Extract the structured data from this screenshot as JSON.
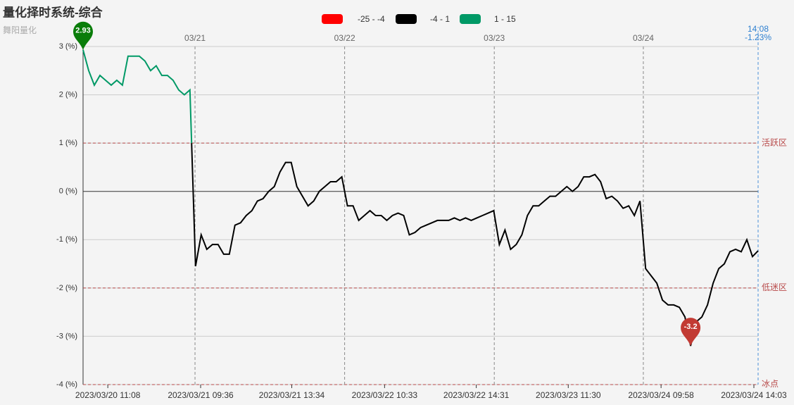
{
  "chart_data": {
    "type": "line",
    "title": "量化择时系统-综合",
    "subtitle": "舞阳量化",
    "pieces": [
      {
        "min": -25,
        "max": -4,
        "label": "-25 - -4",
        "color": "#ff0000"
      },
      {
        "min": -4,
        "max": 1,
        "label": "-4 - 1",
        "color": "#000000"
      },
      {
        "min": 1,
        "max": 15,
        "label": "1 - 15",
        "color": "#009966"
      }
    ],
    "series": [
      {
        "values": [
          2.93,
          2.5,
          2.2,
          2.4,
          2.3,
          2.2,
          2.3,
          2.2,
          2.8,
          2.8,
          2.8,
          2.7,
          2.5,
          2.6,
          2.4,
          2.4,
          2.3,
          2.1,
          2.0,
          2.1,
          -1.55,
          -0.9,
          -1.2,
          -1.1,
          -1.1,
          -1.3,
          -1.3,
          -0.7,
          -0.65,
          -0.5,
          -0.4,
          -0.2,
          -0.15,
          0.0,
          0.1,
          0.4,
          0.6,
          0.6,
          0.1,
          -0.1,
          -0.3,
          -0.2,
          0.0,
          0.1,
          0.2,
          0.2,
          0.3,
          -0.3,
          -0.3,
          -0.6,
          -0.5,
          -0.4,
          -0.5,
          -0.5,
          -0.6,
          -0.5,
          -0.45,
          -0.5,
          -0.9,
          -0.85,
          -0.75,
          -0.7,
          -0.65,
          -0.6,
          -0.6,
          -0.6,
          -0.55,
          -0.6,
          -0.55,
          -0.6,
          -0.55,
          -0.5,
          -0.45,
          -0.4,
          -1.1,
          -0.8,
          -1.2,
          -1.1,
          -0.9,
          -0.5,
          -0.3,
          -0.3,
          -0.2,
          -0.1,
          -0.1,
          0.0,
          0.1,
          0.0,
          0.1,
          0.3,
          0.3,
          0.35,
          0.2,
          -0.15,
          -0.1,
          -0.2,
          -0.35,
          -0.3,
          -0.5,
          -0.2,
          -1.6,
          -1.75,
          -1.9,
          -2.25,
          -2.35,
          -2.35,
          -2.4,
          -2.6,
          -3.2,
          -2.7,
          -2.6,
          -2.35,
          -1.9,
          -1.6,
          -1.5,
          -1.25,
          -1.2,
          -1.25,
          -1.0,
          -1.35,
          -1.23
        ]
      }
    ],
    "max_value": 2.93,
    "min_value": -3.2,
    "xlim": [
      0,
      120
    ],
    "xticks": [
      {
        "value": 4.4,
        "label": "2023/03/20 11:08"
      },
      {
        "value": 20.9,
        "label": "2023/03/21 09:36"
      },
      {
        "value": 37.1,
        "label": "2023/03/21 13:34"
      },
      {
        "value": 53.6,
        "label": "2023/03/22 10:33"
      },
      {
        "value": 69.9,
        "label": "2023/03/22 14:31"
      },
      {
        "value": 86.25,
        "label": "2023/03/23 11:30"
      },
      {
        "value": 102.75,
        "label": "2023/03/24 09:58"
      },
      {
        "value": 119.25,
        "label": "2023/03/24 14:03"
      }
    ],
    "top_xticks": [
      {
        "value": 19.9,
        "label": "03/21"
      },
      {
        "value": 46.5,
        "label": "03/22"
      },
      {
        "value": 73.1,
        "label": "03/23"
      },
      {
        "value": 99.6,
        "label": "03/24"
      }
    ],
    "ylim": [
      -4,
      3
    ],
    "yticks": [
      {
        "value": -4,
        "label": "-4 (%)"
      },
      {
        "value": -3,
        "label": "-3 (%)"
      },
      {
        "value": -2,
        "label": "-2 (%)"
      },
      {
        "value": -1,
        "label": "-1 (%)"
      },
      {
        "value": 0,
        "label": "0 (%)"
      },
      {
        "value": 1,
        "label": "1 (%)"
      },
      {
        "value": 2,
        "label": "2 (%)"
      },
      {
        "value": 3,
        "label": "3 (%)"
      }
    ],
    "mark_lines": [
      {
        "value": 1,
        "label": "活跃区"
      },
      {
        "value": -2,
        "label": "低迷区"
      },
      {
        "value": -4,
        "label": "冰点"
      }
    ],
    "current": {
      "time": "14:08",
      "value": -1.23,
      "label": "-1.23%"
    },
    "grid": true
  }
}
